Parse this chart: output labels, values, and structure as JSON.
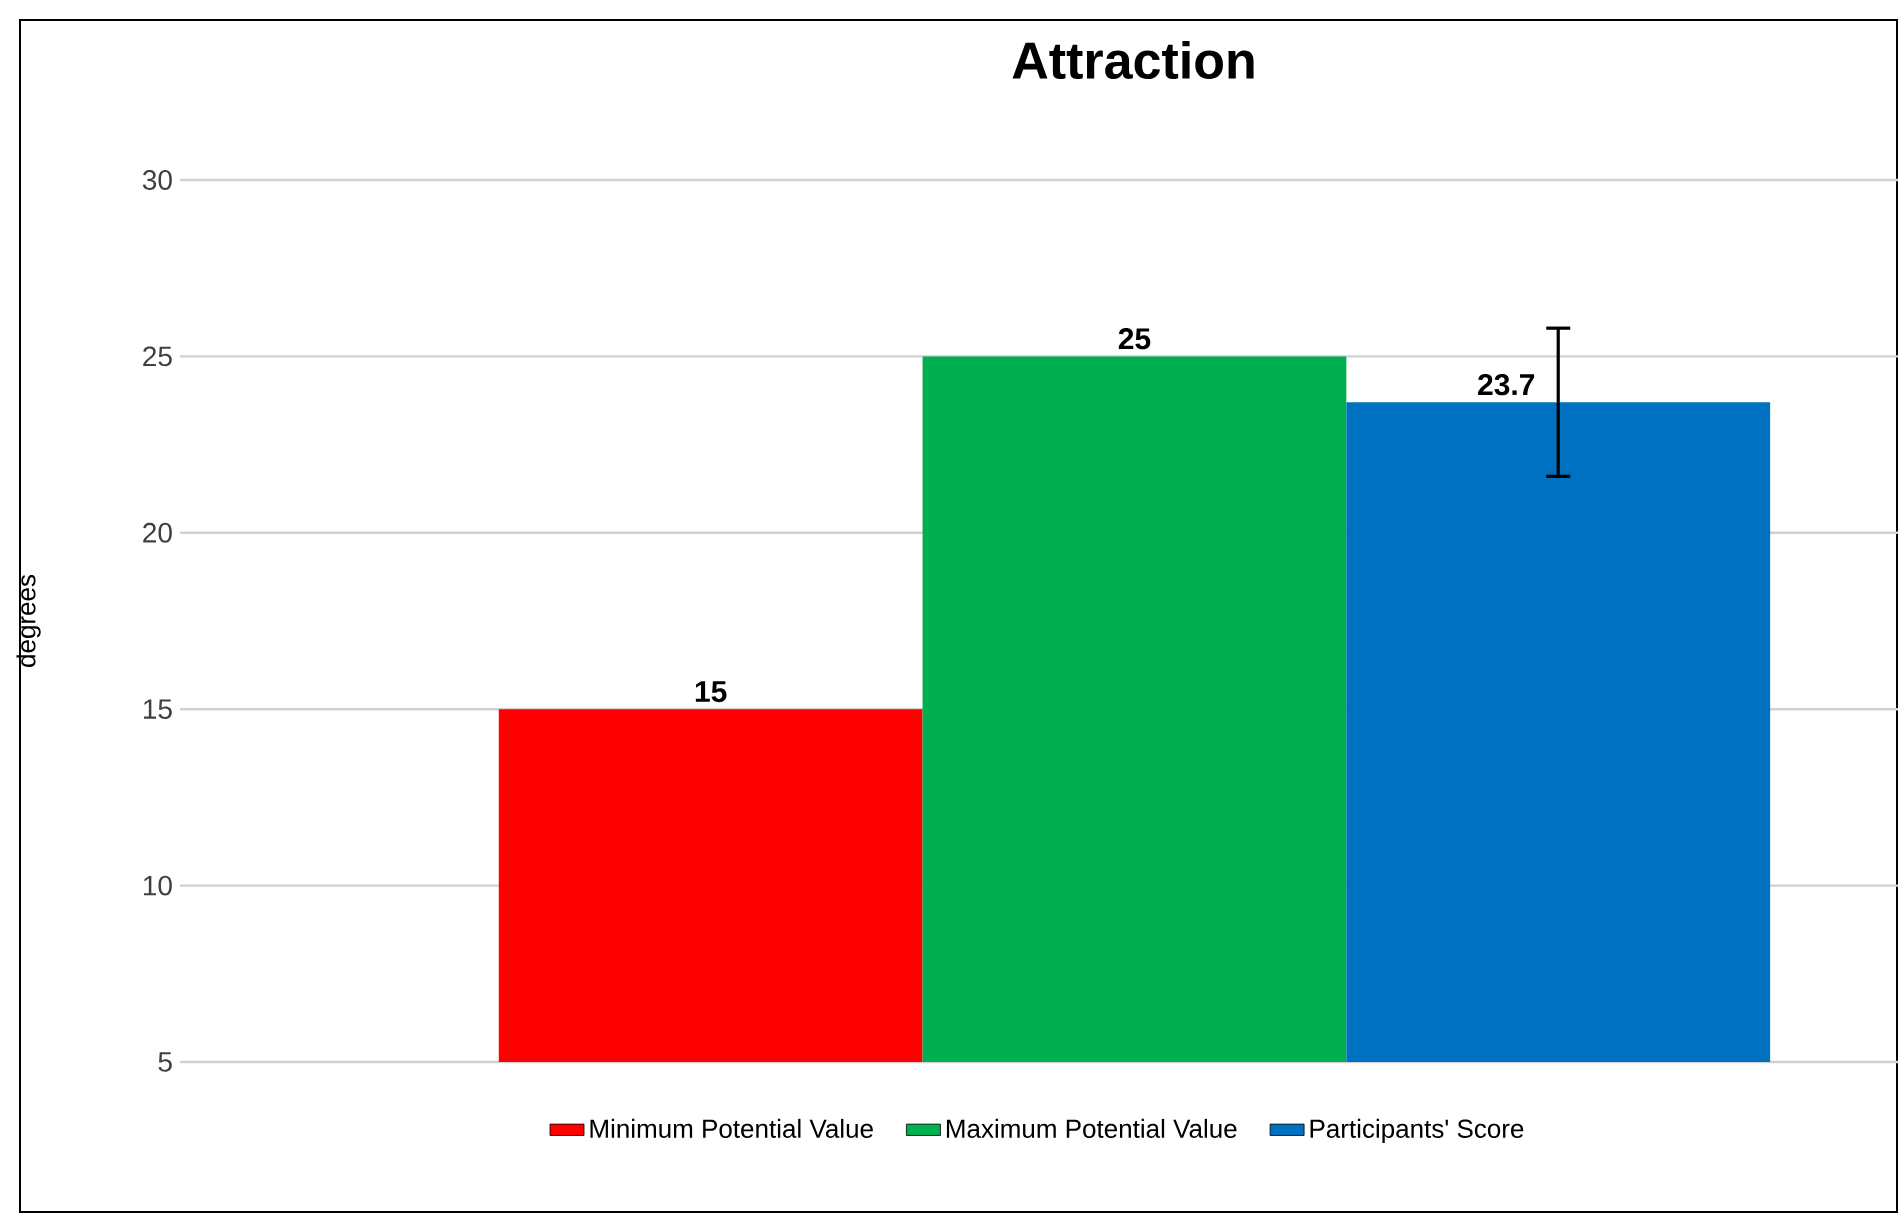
{
  "chart_data": {
    "type": "bar",
    "title": "Attraction",
    "ylabel": "degrees",
    "categories": [
      null
    ],
    "series": [
      {
        "name": "Minimum Potential Value",
        "color": "#ff0000",
        "values": [
          15
        ]
      },
      {
        "name": "Maximum Potential Value",
        "color": "#00b050",
        "values": [
          25
        ]
      },
      {
        "name": "Participants' Score",
        "color": "#0070c0",
        "values": [
          23.7
        ],
        "errors": [
          2.1
        ]
      }
    ],
    "ylim": [
      5,
      30
    ],
    "yticks": [
      5,
      10,
      15,
      20,
      25,
      30
    ],
    "grid": "y",
    "legend": "bottom",
    "data_labels": true
  }
}
